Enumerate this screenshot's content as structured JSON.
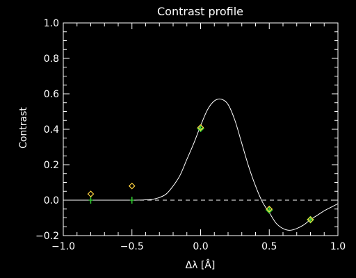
{
  "chart_data": {
    "type": "line",
    "title": "Contrast profile",
    "xlabel": "Δλ [Å]",
    "ylabel": "Contrast",
    "xlim": [
      -1.0,
      1.0
    ],
    "ylim": [
      -0.2,
      1.0
    ],
    "x_ticks": [
      "−1.0",
      "−0.5",
      "0.0",
      "0.5",
      "1.0"
    ],
    "y_ticks": [
      "−0.2",
      "0.0",
      "0.2",
      "0.4",
      "0.6",
      "0.8",
      "1.0"
    ],
    "grid": false,
    "reference_line": {
      "y": 0.0,
      "style": "dashed",
      "color": "#ffffff"
    },
    "series": [
      {
        "kind": "fitted-curve",
        "color": "#ffffff",
        "x": [
          -1.0,
          -0.5,
          -0.4,
          -0.35,
          -0.3,
          -0.25,
          -0.2,
          -0.15,
          -0.1,
          -0.05,
          0.0,
          0.05,
          0.1,
          0.15,
          0.2,
          0.25,
          0.3,
          0.35,
          0.4,
          0.45,
          0.5,
          0.55,
          0.6,
          0.65,
          0.7,
          0.75,
          0.8,
          0.85,
          0.9,
          0.95,
          1.0
        ],
        "y": [
          0.0,
          0.0,
          0.002,
          0.005,
          0.015,
          0.035,
          0.08,
          0.14,
          0.23,
          0.32,
          0.42,
          0.51,
          0.56,
          0.57,
          0.54,
          0.45,
          0.32,
          0.19,
          0.08,
          -0.01,
          -0.07,
          -0.13,
          -0.16,
          -0.17,
          -0.16,
          -0.14,
          -0.11,
          -0.085,
          -0.06,
          -0.04,
          -0.02
        ]
      },
      {
        "kind": "observed",
        "marker": "diamond",
        "color": "#ffd23f",
        "x": [
          -0.8,
          -0.5,
          0.0,
          0.5,
          0.8
        ],
        "y": [
          0.035,
          0.08,
          0.41,
          -0.05,
          -0.11
        ]
      },
      {
        "kind": "fit-samples",
        "marker": "diamond-and-plus",
        "color": "#33cc33",
        "x": [
          -0.8,
          -0.5,
          0.0,
          0.5,
          0.8
        ],
        "y": [
          0.0,
          0.0,
          0.405,
          -0.055,
          -0.11
        ]
      }
    ]
  }
}
